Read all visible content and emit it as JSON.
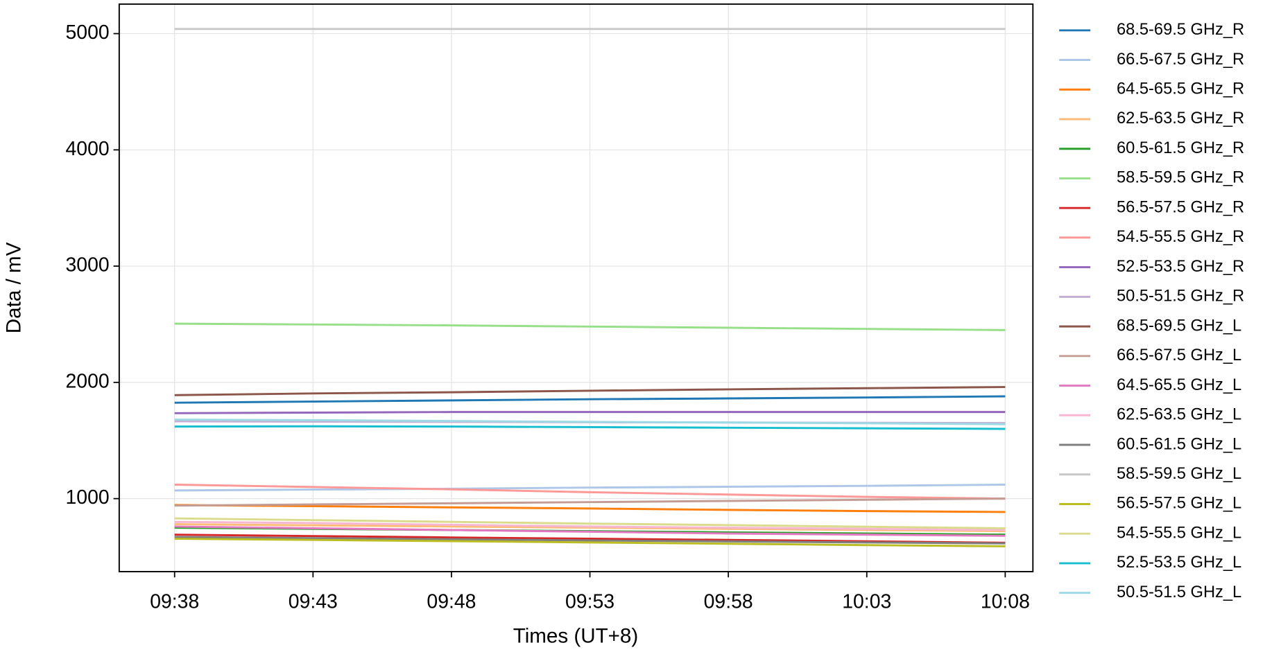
{
  "chart_data": {
    "type": "line",
    "x_label": "Times (UT+8)",
    "y_label": "Data / mV",
    "x": [
      "09:38",
      "09:43",
      "09:48",
      "09:53",
      "09:58",
      "10:03",
      "10:08"
    ],
    "xlim": [
      "09:36",
      "10:09"
    ],
    "xticks": [
      "09:38",
      "09:43",
      "09:48",
      "09:53",
      "09:58",
      "10:03",
      "10:08"
    ],
    "ylim": [
      372,
      5254
    ],
    "yticks": [
      1000,
      2000,
      3000,
      4000,
      5000
    ],
    "grid": true,
    "legend": "outside right",
    "series": [
      {
        "name": "68.5-69.5 GHz_R",
        "color": "#1f77b4",
        "values": [
          1825,
          1835,
          1845,
          1855,
          1862,
          1870,
          1880
        ]
      },
      {
        "name": "66.5-67.5 GHz_R",
        "color": "#aec7e8",
        "values": [
          1070,
          1078,
          1085,
          1095,
          1102,
          1110,
          1120
        ]
      },
      {
        "name": "64.5-65.5 GHz_R",
        "color": "#ff7f0e",
        "values": [
          945,
          935,
          925,
          915,
          903,
          893,
          885
        ]
      },
      {
        "name": "62.5-63.5 GHz_R",
        "color": "#ffbb78",
        "values": [
          780,
          770,
          760,
          750,
          740,
          730,
          720
        ]
      },
      {
        "name": "60.5-61.5 GHz_R",
        "color": "#2ca02c",
        "values": [
          750,
          740,
          730,
          720,
          710,
          700,
          690
        ]
      },
      {
        "name": "58.5-59.5 GHz_R",
        "color": "#98df8a",
        "values": [
          2505,
          2498,
          2490,
          2480,
          2470,
          2460,
          2450
        ]
      },
      {
        "name": "56.5-57.5 GHz_R",
        "color": "#d62728",
        "values": [
          690,
          678,
          666,
          655,
          645,
          633,
          620
        ]
      },
      {
        "name": "54.5-55.5 GHz_R",
        "color": "#ff9896",
        "values": [
          1120,
          1100,
          1080,
          1055,
          1035,
          1015,
          1000
        ]
      },
      {
        "name": "52.5-53.5 GHz_R",
        "color": "#9467bd",
        "values": [
          1735,
          1740,
          1745,
          1745,
          1745,
          1745,
          1745
        ]
      },
      {
        "name": "50.5-51.5 GHz_R",
        "color": "#c5b0d5",
        "values": [
          1665,
          1662,
          1660,
          1657,
          1655,
          1652,
          1650
        ]
      },
      {
        "name": "68.5-69.5 GHz_L",
        "color": "#8c564b",
        "values": [
          1890,
          1905,
          1915,
          1928,
          1940,
          1950,
          1960
        ]
      },
      {
        "name": "66.5-67.5 GHz_L",
        "color": "#c49c94",
        "values": [
          940,
          950,
          960,
          970,
          980,
          990,
          1000
        ]
      },
      {
        "name": "64.5-65.5 GHz_L",
        "color": "#e377c2",
        "values": [
          760,
          745,
          730,
          715,
          700,
          690,
          680
        ]
      },
      {
        "name": "62.5-63.5 GHz_L",
        "color": "#f7b6d2",
        "values": [
          800,
          790,
          775,
          760,
          750,
          740,
          730
        ]
      },
      {
        "name": "60.5-61.5 GHz_L",
        "color": "#7f7f7f",
        "values": [
          670,
          660,
          650,
          640,
          632,
          623,
          615
        ]
      },
      {
        "name": "58.5-59.5 GHz_L",
        "color": "#c7c7c7",
        "values": [
          5040,
          5040,
          5040,
          5040,
          5040,
          5040,
          5040
        ]
      },
      {
        "name": "56.5-57.5 GHz_L",
        "color": "#bcbd22",
        "values": [
          655,
          645,
          634,
          623,
          612,
          600,
          590
        ]
      },
      {
        "name": "54.5-55.5 GHz_L",
        "color": "#dbdb8d",
        "values": [
          830,
          815,
          800,
          785,
          772,
          758,
          745
        ]
      },
      {
        "name": "52.5-53.5 GHz_L",
        "color": "#17becf",
        "values": [
          1620,
          1622,
          1620,
          1615,
          1610,
          1605,
          1600
        ]
      },
      {
        "name": "50.5-51.5 GHz_L",
        "color": "#9edae5",
        "values": [
          1680,
          1675,
          1668,
          1660,
          1655,
          1648,
          1640
        ]
      }
    ]
  }
}
